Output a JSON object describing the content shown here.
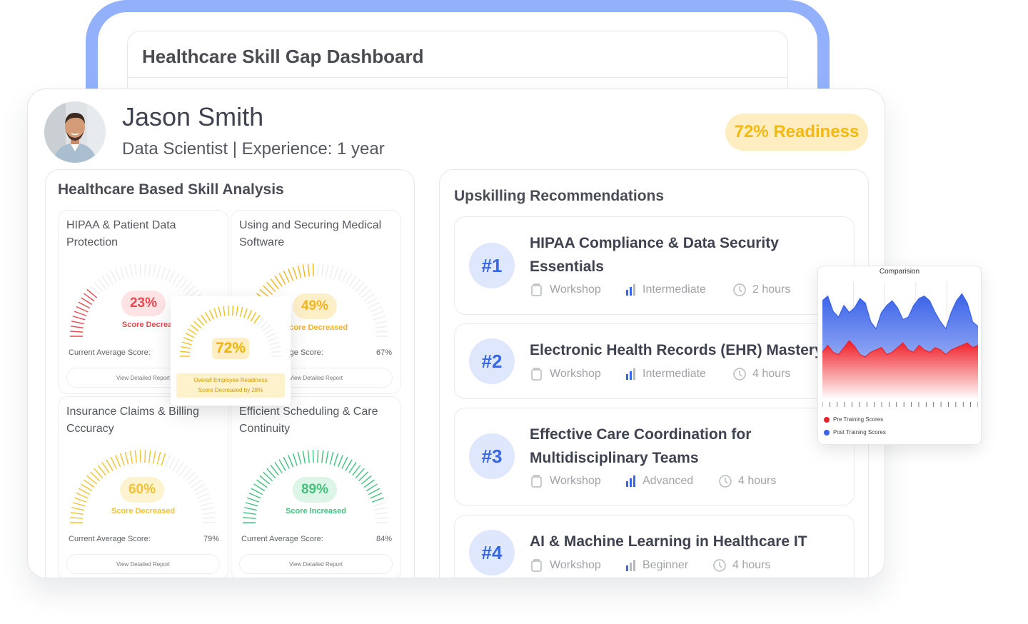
{
  "dashboard": {
    "title": "Healthcare Skill Gap Dashboard"
  },
  "profile": {
    "name": "Jason Smith",
    "role_line": "Data Scientist | Experience: 1 year",
    "readiness_badge": "72% Readiness",
    "avatar_icon": "user-photo"
  },
  "skills_panel": {
    "title": "Healthcare Based Skill Analysis",
    "avg_label": "Current Average Score:",
    "report_label": "View Detailed Report",
    "cards": [
      {
        "title": "HIPAA & Patient Data Protection",
        "score": "23%",
        "score_value": 23,
        "status": "Score Decreased",
        "avg": "",
        "color": "#e8484f",
        "bg": "#fde3e4"
      },
      {
        "title": "Using and Securing Medical Software",
        "score": "49%",
        "score_value": 49,
        "status": "Score Decreased",
        "avg": "67%",
        "color": "#f2b41d",
        "bg": "#fdf0c9"
      },
      {
        "title": "Insurance Claims & Billing Cccuracy",
        "score": "60%",
        "score_value": 60,
        "status": "Score Decreased",
        "avg": "79%",
        "color": "#f2c230",
        "bg": "#fdf3cf"
      },
      {
        "title": "Efficient Scheduling & Care Continuity",
        "score": "89%",
        "score_value": 89,
        "status": "Score Increased",
        "avg": "84%",
        "color": "#3fc47d",
        "bg": "#dcf5e7"
      }
    ]
  },
  "overlay": {
    "value": "72%",
    "value_num": 72,
    "note_line1": "Overall Employee Readiness",
    "note_line2": "Score Decreased by 28%"
  },
  "recommendations": {
    "title": "Upskilling Recommendations",
    "items": [
      {
        "rank": "#1",
        "name_lines": [
          "HIPAA Compliance & Data Security",
          "Essentials"
        ],
        "type": "Workshop",
        "level": "Intermediate",
        "duration": "2 hours"
      },
      {
        "rank": "#2",
        "name_lines": [
          "Electronic Health Records (EHR) Mastery"
        ],
        "type": "Workshop",
        "level": "Intermediate",
        "duration": "4 hours"
      },
      {
        "rank": "#3",
        "name_lines": [
          "Effective Care Coordination for",
          "Multidisciplinary Teams"
        ],
        "type": "Workshop",
        "level": "Advanced",
        "duration": "4 hours"
      },
      {
        "rank": "#4",
        "name_lines": [
          "AI & Machine Learning in Healthcare IT"
        ],
        "type": "Workshop",
        "level": "Beginner",
        "duration": "4 hours"
      }
    ]
  },
  "chart_data": {
    "type": "area",
    "title": "Comparision",
    "series": [
      {
        "name": "Post Training Scores",
        "color": "#3a62e8",
        "values": [
          84,
          88,
          75,
          70,
          80,
          74,
          78,
          86,
          82,
          66,
          60,
          74,
          80,
          84,
          78,
          68,
          70,
          80,
          86,
          88,
          84,
          74,
          66,
          60,
          74,
          84,
          90,
          82,
          66,
          62
        ]
      },
      {
        "name": "Pre Training Scores",
        "color": "#e8232b",
        "values": [
          40,
          46,
          40,
          38,
          44,
          50,
          45,
          38,
          36,
          40,
          42,
          44,
          38,
          40,
          44,
          48,
          42,
          40,
          46,
          42,
          40,
          44,
          42,
          38,
          42,
          44,
          46,
          48,
          44,
          46
        ]
      }
    ],
    "ylim": [
      0,
      100
    ],
    "grid": true,
    "legend": "bottom-left"
  }
}
